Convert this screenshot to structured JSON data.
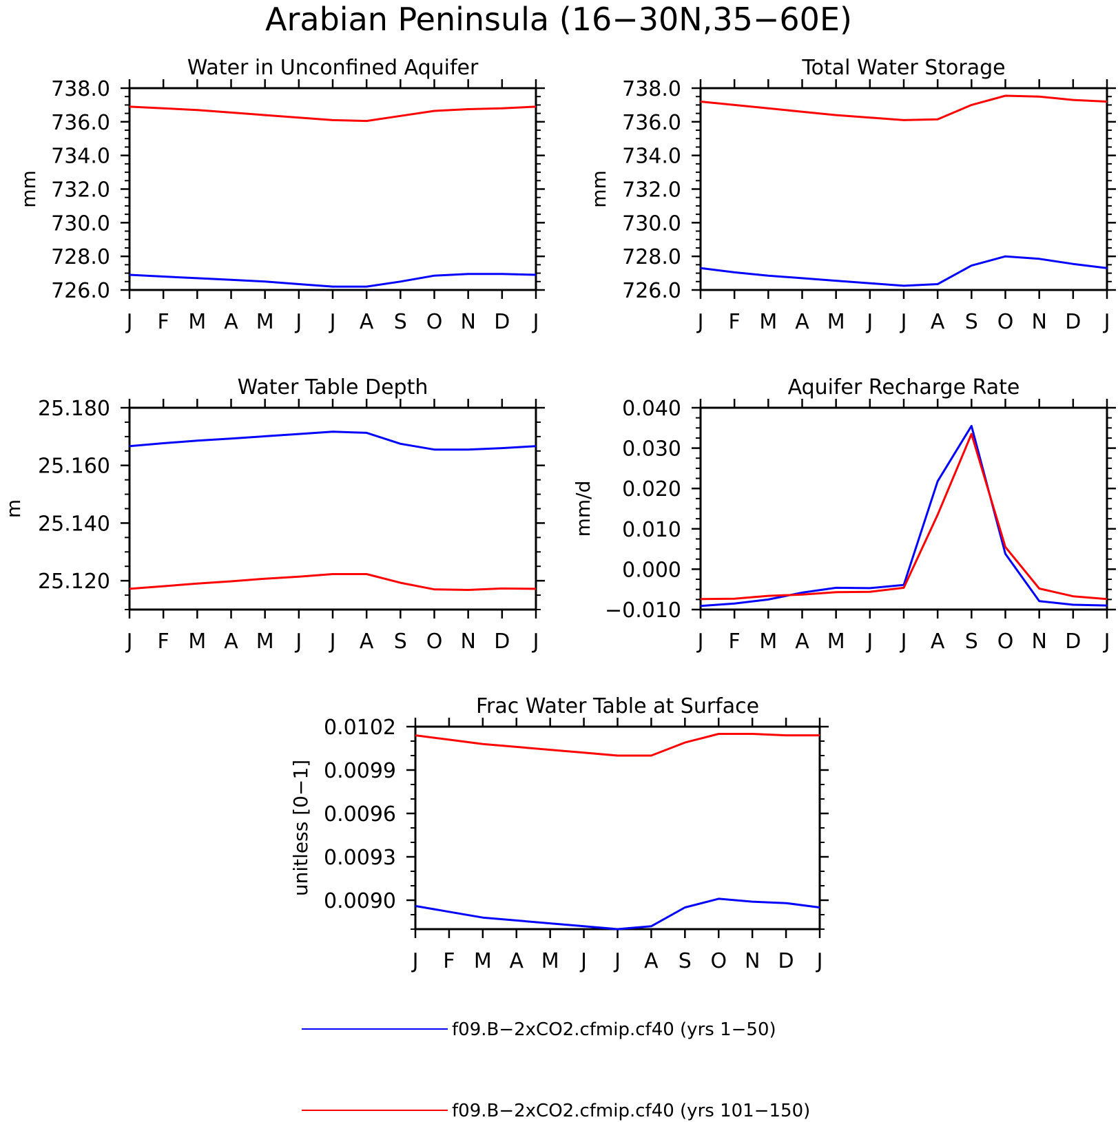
{
  "figure": {
    "title": "Arabian Peninsula (16−30N,35−60E)"
  },
  "colors": {
    "series_1": "#0000ff",
    "series_2": "#ff0000",
    "axes": "#000000"
  },
  "legend": {
    "entries": [
      {
        "label": "f09.B−2xCO2.cfmip.cf40 (yrs 1−50)",
        "color": "#0000ff"
      },
      {
        "label": "f09.B−2xCO2.cfmip.cf40 (yrs 101−150)",
        "color": "#ff0000"
      }
    ]
  },
  "chart_data": [
    {
      "type": "line",
      "title": "Water in Unconfined Aquifer",
      "xlabel": "",
      "ylabel": "mm",
      "categories": [
        "J",
        "F",
        "M",
        "A",
        "M",
        "J",
        "J",
        "A",
        "S",
        "O",
        "N",
        "D",
        "J"
      ],
      "ylim": [
        726.0,
        738.0
      ],
      "yticks": [
        726.0,
        728.0,
        730.0,
        732.0,
        734.0,
        736.0,
        738.0
      ],
      "ytick_labels": [
        "726.0",
        "728.0",
        "730.0",
        "732.0",
        "734.0",
        "736.0",
        "738.0"
      ],
      "minor_step": 0.5,
      "grid": false,
      "series": [
        {
          "name": "f09.B−2xCO2.cfmip.cf40 (yrs 1−50)",
          "color": "#0000ff",
          "values": [
            726.9,
            726.8,
            726.7,
            726.6,
            726.5,
            726.35,
            726.2,
            726.2,
            726.5,
            726.85,
            726.95,
            726.95,
            726.9
          ]
        },
        {
          "name": "f09.B−2xCO2.cfmip.cf40 (yrs 101−150)",
          "color": "#ff0000",
          "values": [
            736.9,
            736.8,
            736.7,
            736.55,
            736.4,
            736.25,
            736.1,
            736.05,
            736.35,
            736.65,
            736.75,
            736.8,
            736.9
          ]
        }
      ]
    },
    {
      "type": "line",
      "title": "Total Water Storage",
      "xlabel": "",
      "ylabel": "mm",
      "categories": [
        "J",
        "F",
        "M",
        "A",
        "M",
        "J",
        "J",
        "A",
        "S",
        "O",
        "N",
        "D",
        "J"
      ],
      "ylim": [
        726.0,
        738.0
      ],
      "yticks": [
        726.0,
        728.0,
        730.0,
        732.0,
        734.0,
        736.0,
        738.0
      ],
      "ytick_labels": [
        "726.0",
        "728.0",
        "730.0",
        "732.0",
        "734.0",
        "736.0",
        "738.0"
      ],
      "minor_step": 0.5,
      "grid": false,
      "series": [
        {
          "name": "f09.B−2xCO2.cfmip.cf40 (yrs 1−50)",
          "color": "#0000ff",
          "values": [
            727.3,
            727.05,
            726.85,
            726.7,
            726.55,
            726.4,
            726.25,
            726.35,
            727.45,
            728.0,
            727.85,
            727.55,
            727.3
          ]
        },
        {
          "name": "f09.B−2xCO2.cfmip.cf40 (yrs 101−150)",
          "color": "#ff0000",
          "values": [
            737.2,
            737.0,
            736.8,
            736.6,
            736.4,
            736.25,
            736.1,
            736.15,
            737.0,
            737.55,
            737.5,
            737.3,
            737.2
          ]
        }
      ]
    },
    {
      "type": "line",
      "title": "Water Table Depth",
      "xlabel": "",
      "ylabel": "m",
      "categories": [
        "J",
        "F",
        "M",
        "A",
        "M",
        "J",
        "J",
        "A",
        "S",
        "O",
        "N",
        "D",
        "J"
      ],
      "ylim": [
        25.11,
        25.18
      ],
      "yticks": [
        25.12,
        25.14,
        25.16,
        25.18
      ],
      "ytick_labels": [
        "25.120",
        "25.140",
        "25.160",
        "25.180"
      ],
      "minor_step": 0.005,
      "grid": false,
      "series": [
        {
          "name": "f09.B−2xCO2.cfmip.cf40 (yrs 1−50)",
          "color": "#0000ff",
          "values": [
            25.1667,
            25.1677,
            25.1686,
            25.1693,
            25.1701,
            25.1709,
            25.1717,
            25.1713,
            25.1675,
            25.1655,
            25.1655,
            25.166,
            25.1667
          ]
        },
        {
          "name": "f09.B−2xCO2.cfmip.cf40 (yrs 101−150)",
          "color": "#ff0000",
          "values": [
            25.1172,
            25.1181,
            25.119,
            25.1198,
            25.1207,
            25.1214,
            25.1223,
            25.1223,
            25.1193,
            25.117,
            25.1168,
            25.1173,
            25.1172
          ]
        }
      ]
    },
    {
      "type": "line",
      "title": "Aquifer Recharge Rate",
      "xlabel": "",
      "ylabel": "mm/d",
      "categories": [
        "J",
        "F",
        "M",
        "A",
        "M",
        "J",
        "J",
        "A",
        "S",
        "O",
        "N",
        "D",
        "J"
      ],
      "ylim": [
        -0.01,
        0.04
      ],
      "yticks": [
        -0.01,
        0.0,
        0.01,
        0.02,
        0.03,
        0.04
      ],
      "ytick_labels": [
        "−0.010",
        "0.000",
        "0.010",
        "0.020",
        "0.030",
        "0.040"
      ],
      "minor_step": 0.0025,
      "grid": false,
      "series": [
        {
          "name": "f09.B−2xCO2.cfmip.cf40 (yrs 1−50)",
          "color": "#0000ff",
          "values": [
            -0.0091,
            -0.0085,
            -0.0075,
            -0.0058,
            -0.0046,
            -0.0047,
            -0.0039,
            0.0218,
            0.0355,
            0.0038,
            -0.0079,
            -0.0088,
            -0.009
          ]
        },
        {
          "name": "f09.B−2xCO2.cfmip.cf40 (yrs 101−150)",
          "color": "#ff0000",
          "values": [
            -0.0074,
            -0.0073,
            -0.0066,
            -0.0063,
            -0.0057,
            -0.0056,
            -0.0046,
            0.0135,
            0.0335,
            0.0055,
            -0.0048,
            -0.0067,
            -0.0074
          ]
        }
      ]
    },
    {
      "type": "line",
      "title": "Frac Water Table at Surface",
      "xlabel": "",
      "ylabel": "unitless [0−1]",
      "categories": [
        "J",
        "F",
        "M",
        "A",
        "M",
        "J",
        "J",
        "A",
        "S",
        "O",
        "N",
        "D",
        "J"
      ],
      "ylim": [
        0.0088,
        0.0102
      ],
      "yticks": [
        0.009,
        0.0093,
        0.0096,
        0.0099,
        0.0102
      ],
      "ytick_labels": [
        "0.0090",
        "0.0093",
        "0.0096",
        "0.0099",
        "0.0102"
      ],
      "minor_step": 0.0001,
      "grid": false,
      "series": [
        {
          "name": "f09.B−2xCO2.cfmip.cf40 (yrs 1−50)",
          "color": "#0000ff",
          "values": [
            0.00896,
            0.00892,
            0.00888,
            0.00886,
            0.00884,
            0.00882,
            0.0088,
            0.00882,
            0.00895,
            0.00901,
            0.00899,
            0.00898,
            0.00895
          ]
        },
        {
          "name": "f09.B−2xCO2.cfmip.cf40 (yrs 101−150)",
          "color": "#ff0000",
          "values": [
            0.01014,
            0.01011,
            0.01008,
            0.01006,
            0.01004,
            0.01002,
            0.01,
            0.01,
            0.01009,
            0.01015,
            0.01015,
            0.01014,
            0.01014
          ]
        }
      ]
    }
  ]
}
